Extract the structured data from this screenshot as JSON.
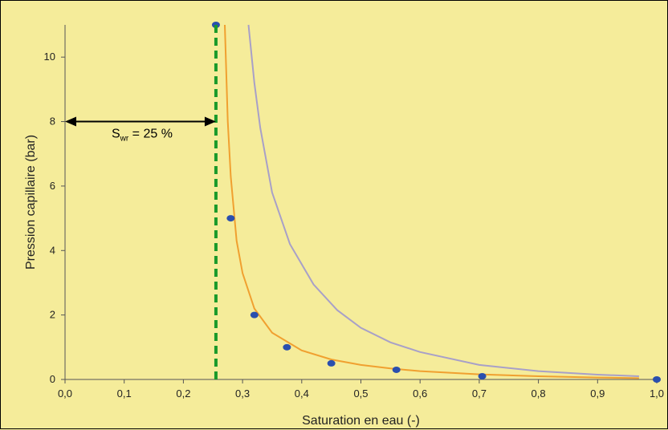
{
  "chart_data": {
    "type": "scatter",
    "xlabel": "Saturation en eau (-)",
    "ylabel": "Pression capillaire (bar)",
    "xlim": [
      0.0,
      1.0
    ],
    "ylim": [
      0,
      11
    ],
    "x_ticks": [
      "0,0",
      "0,1",
      "0,2",
      "0,3",
      "0,4",
      "0,5",
      "0,6",
      "0,7",
      "0,8",
      "0,9",
      "1,0"
    ],
    "y_ticks": [
      "0",
      "2",
      "4",
      "6",
      "8",
      "10"
    ],
    "grid": false,
    "series": [
      {
        "kind": "points",
        "color": "#2a4fae",
        "x": [
          0.255,
          0.28,
          0.32,
          0.375,
          0.45,
          0.56,
          0.705,
          1.0
        ],
        "y": [
          11,
          5,
          2,
          1,
          0.5,
          0.3,
          0.1,
          0.0
        ]
      },
      {
        "kind": "curve",
        "color": "#f0a030",
        "x": [
          0.27,
          0.275,
          0.28,
          0.29,
          0.3,
          0.32,
          0.35,
          0.4,
          0.45,
          0.5,
          0.55,
          0.6,
          0.7,
          0.8,
          0.9,
          0.97
        ],
        "y": [
          11,
          8.0,
          6.3,
          4.3,
          3.3,
          2.2,
          1.45,
          0.9,
          0.62,
          0.45,
          0.34,
          0.26,
          0.16,
          0.1,
          0.06,
          0.04
        ]
      },
      {
        "kind": "curve",
        "color": "#a8a0c8",
        "x": [
          0.31,
          0.32,
          0.33,
          0.35,
          0.38,
          0.42,
          0.46,
          0.5,
          0.55,
          0.6,
          0.7,
          0.8,
          0.9,
          0.97
        ],
        "y": [
          11,
          9.2,
          7.8,
          5.8,
          4.2,
          2.95,
          2.15,
          1.6,
          1.15,
          0.85,
          0.45,
          0.26,
          0.15,
          0.1
        ]
      }
    ],
    "vline": {
      "x": 0.255,
      "color": "#1a9a2a"
    },
    "arrow": {
      "from_x": 0.0,
      "to_x": 0.255,
      "y": 8
    },
    "annotation": {
      "label_main": "S",
      "label_sub": "wr",
      "label_rest": " = 25 %"
    }
  }
}
